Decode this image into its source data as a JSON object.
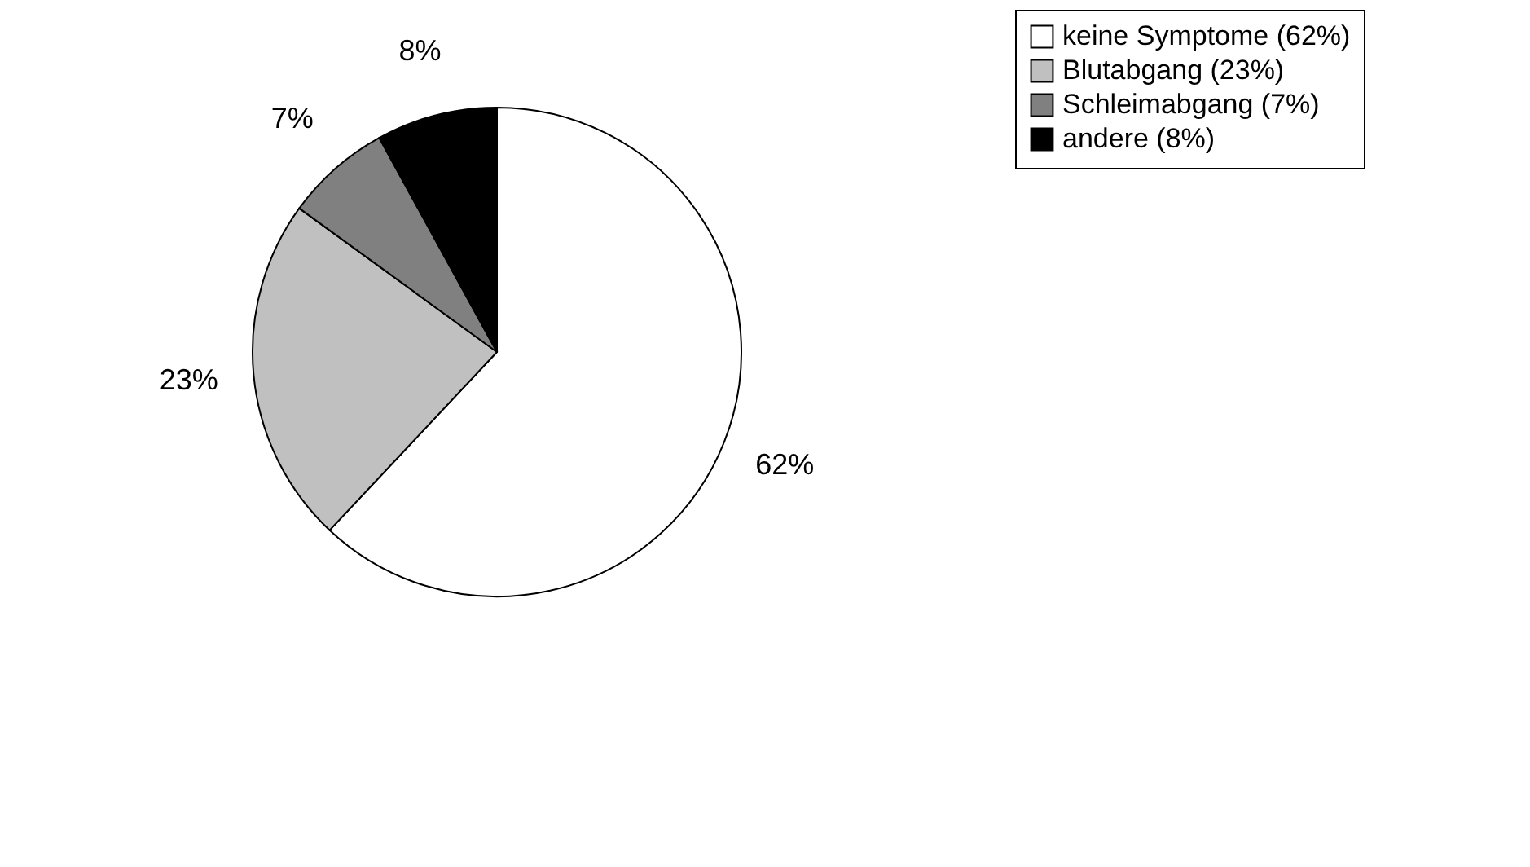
{
  "chart_data": {
    "type": "pie",
    "categories": [
      "keine Symptome (62%)",
      "Blutabgang (23%)",
      "Schleimabgang (7%)",
      "andere (8%)"
    ],
    "values": [
      62,
      23,
      7,
      8
    ],
    "colors": [
      "#ffffff",
      "#c0c0c0",
      "#808080",
      "#000000"
    ],
    "value_labels": [
      "62%",
      "23%",
      "7%",
      "8%"
    ],
    "legend": "right"
  }
}
